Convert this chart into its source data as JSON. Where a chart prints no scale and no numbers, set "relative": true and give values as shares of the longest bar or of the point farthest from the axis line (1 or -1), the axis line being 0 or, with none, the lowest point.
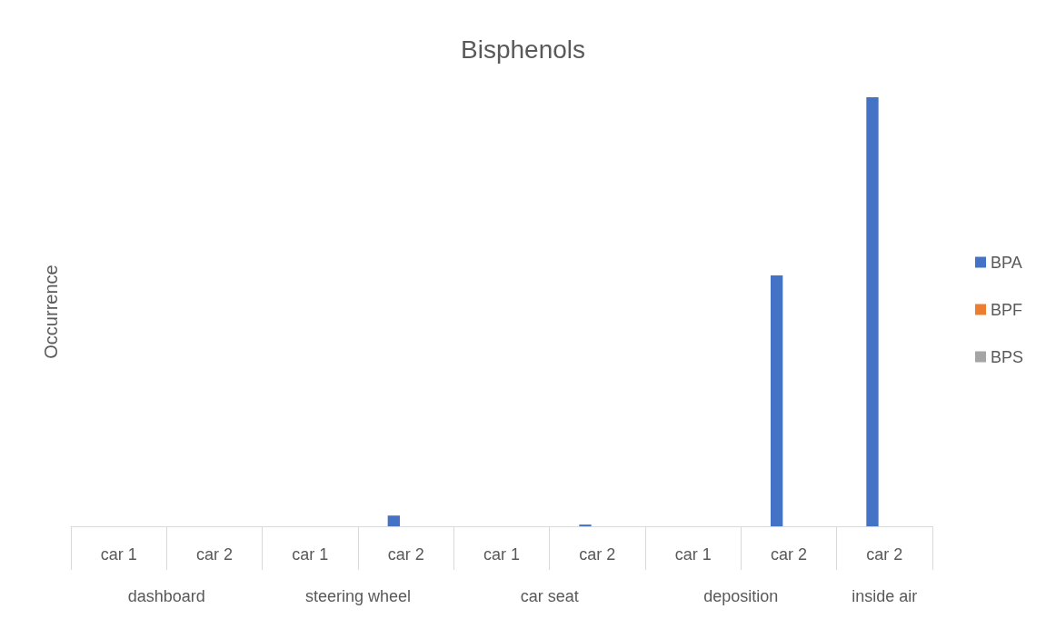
{
  "chart_data": {
    "type": "bar",
    "title": "Bisphenols",
    "ylabel": "Occurrence",
    "relative": true,
    "legend": "right",
    "categories": [
      "car 1",
      "car 2",
      "car 1",
      "car 2",
      "car 1",
      "car 2",
      "car 1",
      "car 2",
      "car 2"
    ],
    "annotations": [
      "dashboard",
      "steering wheel",
      "car seat",
      "deposition",
      "inside air"
    ],
    "series": [
      {
        "name": "BPA",
        "color": "#4472c4",
        "values": [
          0,
          0,
          0,
          0.025,
          0,
          0.004,
          0,
          0.585,
          1
        ]
      },
      {
        "name": "BPF",
        "color": "#ed7d31",
        "values": [
          0,
          0,
          0,
          0,
          0,
          0,
          0,
          0,
          0
        ]
      },
      {
        "name": "BPS",
        "color": "#a5a5a5",
        "values": [
          0,
          0,
          0,
          0,
          0,
          0,
          0,
          0,
          0
        ]
      }
    ]
  }
}
